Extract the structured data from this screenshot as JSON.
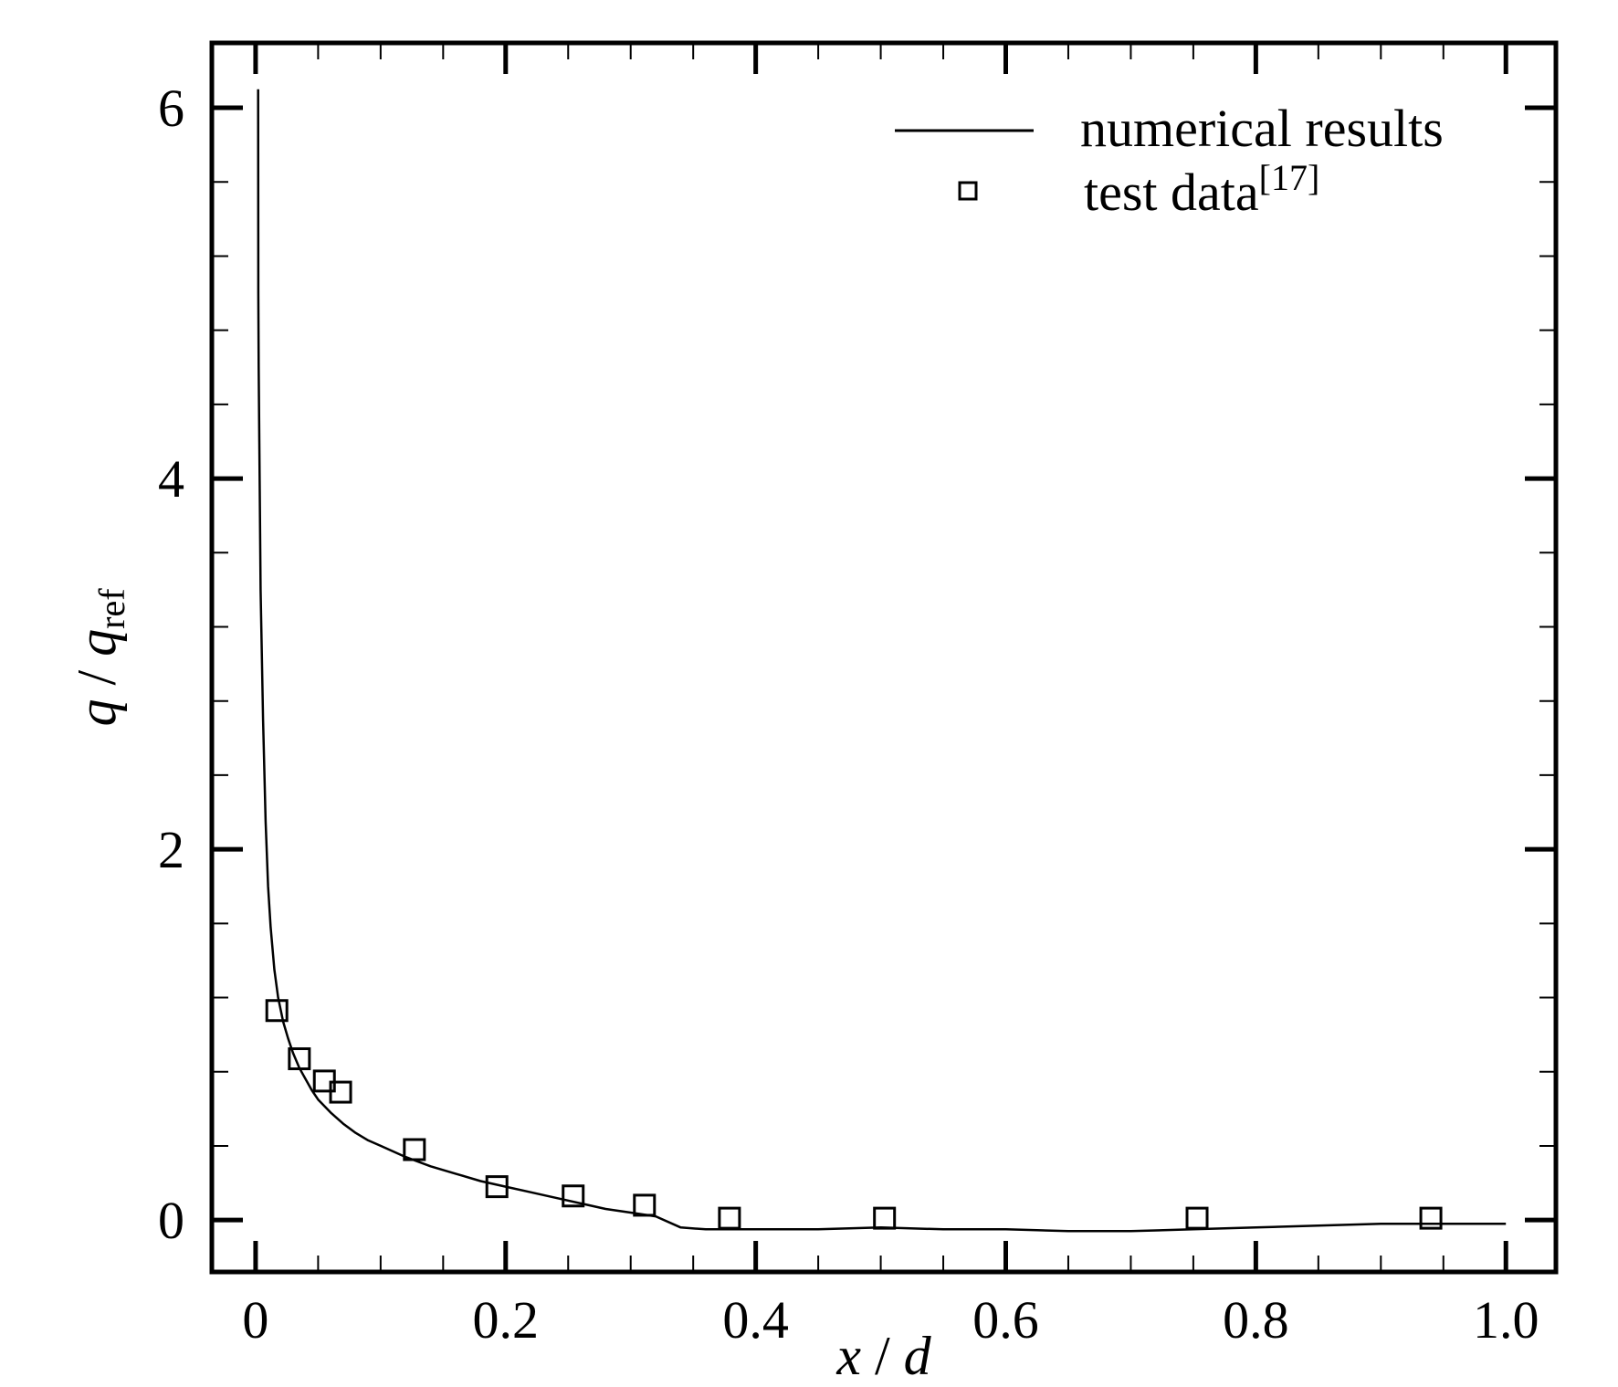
{
  "chart_data": {
    "type": "line",
    "xlabel": {
      "var": "x",
      "sep": " / ",
      "den": "d"
    },
    "ylabel": {
      "var": "q",
      "sep": " / ",
      "den": "q",
      "den_sub": "ref"
    },
    "xlim": [
      -0.035,
      1.04
    ],
    "ylim": [
      -0.28,
      6.35
    ],
    "x_ticks": [
      {
        "value": 0,
        "label": "0"
      },
      {
        "value": 0.2,
        "label": "0.2"
      },
      {
        "value": 0.4,
        "label": "0.4"
      },
      {
        "value": 0.6,
        "label": "0.6"
      },
      {
        "value": 0.8,
        "label": "0.8"
      },
      {
        "value": 1.0,
        "label": "1.0"
      }
    ],
    "y_ticks": [
      {
        "value": 0,
        "label": "0"
      },
      {
        "value": 2,
        "label": "2"
      },
      {
        "value": 4,
        "label": "4"
      },
      {
        "value": 6,
        "label": "6"
      }
    ],
    "grid": false,
    "legend": {
      "position": "top-right",
      "entries": [
        {
          "label": "numerical results",
          "marker": "line",
          "sup": ""
        },
        {
          "label": "test data",
          "marker": "square",
          "sup": "[17]"
        }
      ]
    },
    "series": [
      {
        "name": "numerical results",
        "kind": "line",
        "color": "#000000",
        "x": [
          0.002,
          0.0022,
          0.0025,
          0.003,
          0.004,
          0.006,
          0.008,
          0.01,
          0.012,
          0.015,
          0.018,
          0.022,
          0.026,
          0.03,
          0.035,
          0.04,
          0.045,
          0.05,
          0.06,
          0.07,
          0.08,
          0.09,
          0.1,
          0.12,
          0.14,
          0.16,
          0.18,
          0.2,
          0.22,
          0.24,
          0.26,
          0.28,
          0.3,
          0.32,
          0.34,
          0.36,
          0.4,
          0.45,
          0.5,
          0.55,
          0.6,
          0.65,
          0.7,
          0.75,
          0.8,
          0.85,
          0.9,
          0.95,
          1.0
        ],
        "y": [
          6.1,
          5.0,
          4.6,
          4.2,
          3.4,
          2.7,
          2.15,
          1.8,
          1.58,
          1.35,
          1.2,
          1.07,
          0.98,
          0.9,
          0.82,
          0.76,
          0.7,
          0.65,
          0.58,
          0.52,
          0.47,
          0.43,
          0.4,
          0.34,
          0.29,
          0.25,
          0.21,
          0.18,
          0.15,
          0.12,
          0.09,
          0.06,
          0.04,
          0.02,
          -0.04,
          -0.05,
          -0.05,
          -0.05,
          -0.04,
          -0.05,
          -0.05,
          -0.06,
          -0.06,
          -0.05,
          -0.04,
          -0.03,
          -0.02,
          -0.02,
          -0.02
        ]
      },
      {
        "name": "test data",
        "kind": "scatter",
        "marker": "square",
        "x": [
          0.017,
          0.035,
          0.055,
          0.068,
          0.127,
          0.193,
          0.254,
          0.311,
          0.379,
          0.503,
          0.753,
          0.94
        ],
        "y": [
          1.13,
          0.87,
          0.75,
          0.69,
          0.38,
          0.18,
          0.13,
          0.08,
          0.01,
          0.01,
          0.01,
          0.01
        ]
      }
    ]
  }
}
